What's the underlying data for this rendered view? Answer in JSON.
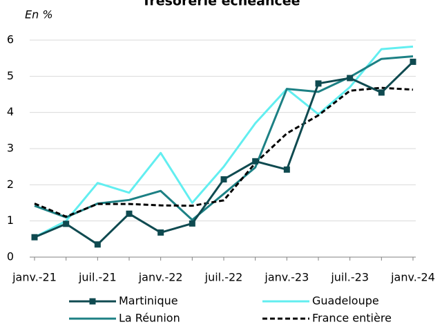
{
  "chart_data": {
    "type": "line",
    "title": "Trésorerie échéancée",
    "y_label": "En %",
    "categories": [
      "janv.-21",
      null,
      "juil.-21",
      null,
      "janv.-22",
      null,
      "juil.-22",
      null,
      "janv.-23",
      null,
      "juil.-23",
      null,
      "janv.-24"
    ],
    "series": [
      {
        "name": "Martinique",
        "color": "#0f4a50",
        "marker": "square",
        "values": [
          0.55,
          0.92,
          0.35,
          1.2,
          0.68,
          0.93,
          2.15,
          2.65,
          2.42,
          4.8,
          4.95,
          4.55,
          5.4
        ]
      },
      {
        "name": "Guadeloupe",
        "color": "#62eef0",
        "values": [
          0.55,
          1.0,
          2.05,
          1.78,
          2.88,
          1.5,
          2.5,
          3.7,
          4.65,
          3.95,
          4.7,
          5.75,
          5.82
        ]
      },
      {
        "name": "La Réunion",
        "color": "#1c8084",
        "values": [
          1.42,
          1.1,
          1.48,
          1.58,
          1.83,
          1.03,
          1.75,
          2.48,
          4.65,
          4.57,
          4.98,
          5.48,
          5.55
        ]
      },
      {
        "name": "France entière",
        "color": "#000000",
        "dashed": true,
        "values": [
          1.48,
          1.12,
          1.47,
          1.47,
          1.43,
          1.42,
          1.57,
          2.6,
          3.42,
          3.92,
          4.6,
          4.68,
          4.63
        ]
      }
    ],
    "ylim": [
      0,
      6
    ],
    "yticks": [
      0,
      1,
      2,
      3,
      4,
      5,
      6
    ],
    "grid": true
  }
}
